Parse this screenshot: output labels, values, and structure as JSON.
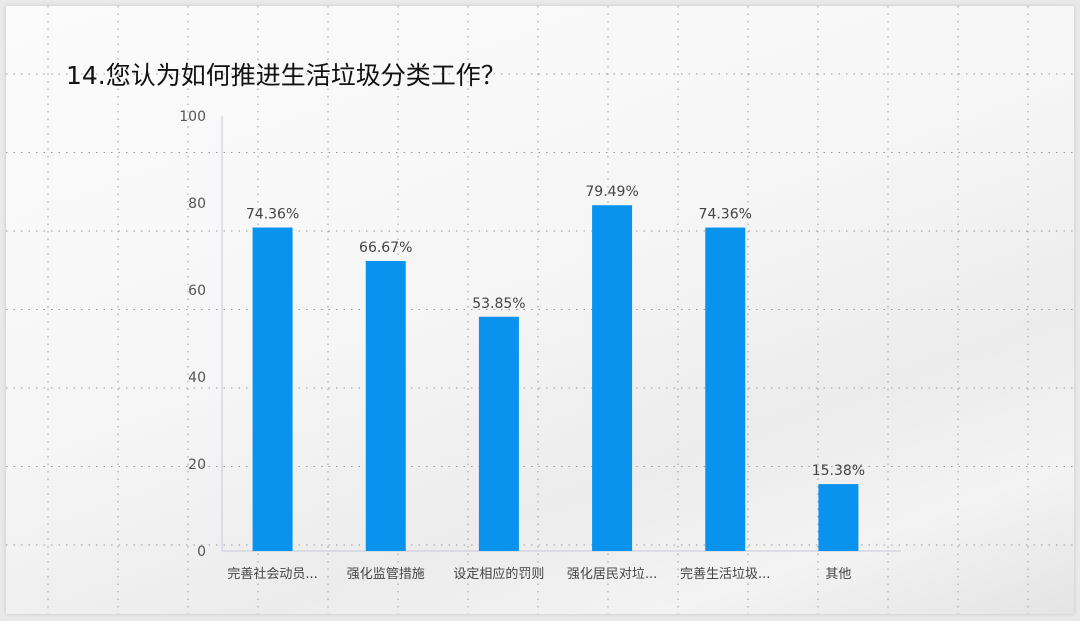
{
  "chart_data": {
    "type": "bar",
    "title": "14.您认为如何推进生活垃圾分类工作？",
    "categories": [
      "完善社会动员...",
      "强化监管措施",
      "设定相应的罚则",
      "强化居民对垃...",
      "完善生活垃圾...",
      "其他"
    ],
    "values": [
      74.36,
      66.67,
      53.85,
      79.49,
      74.36,
      15.38
    ],
    "data_labels": [
      "74.36%",
      "66.67%",
      "53.85%",
      "79.49%",
      "74.36%",
      "15.38%"
    ],
    "yticks": [
      "0",
      "20",
      "40",
      "60",
      "80",
      "100"
    ],
    "ylim": [
      0,
      100
    ],
    "xlabel": "",
    "ylabel": "",
    "grid": false,
    "bar_color": "#0a93ee"
  }
}
